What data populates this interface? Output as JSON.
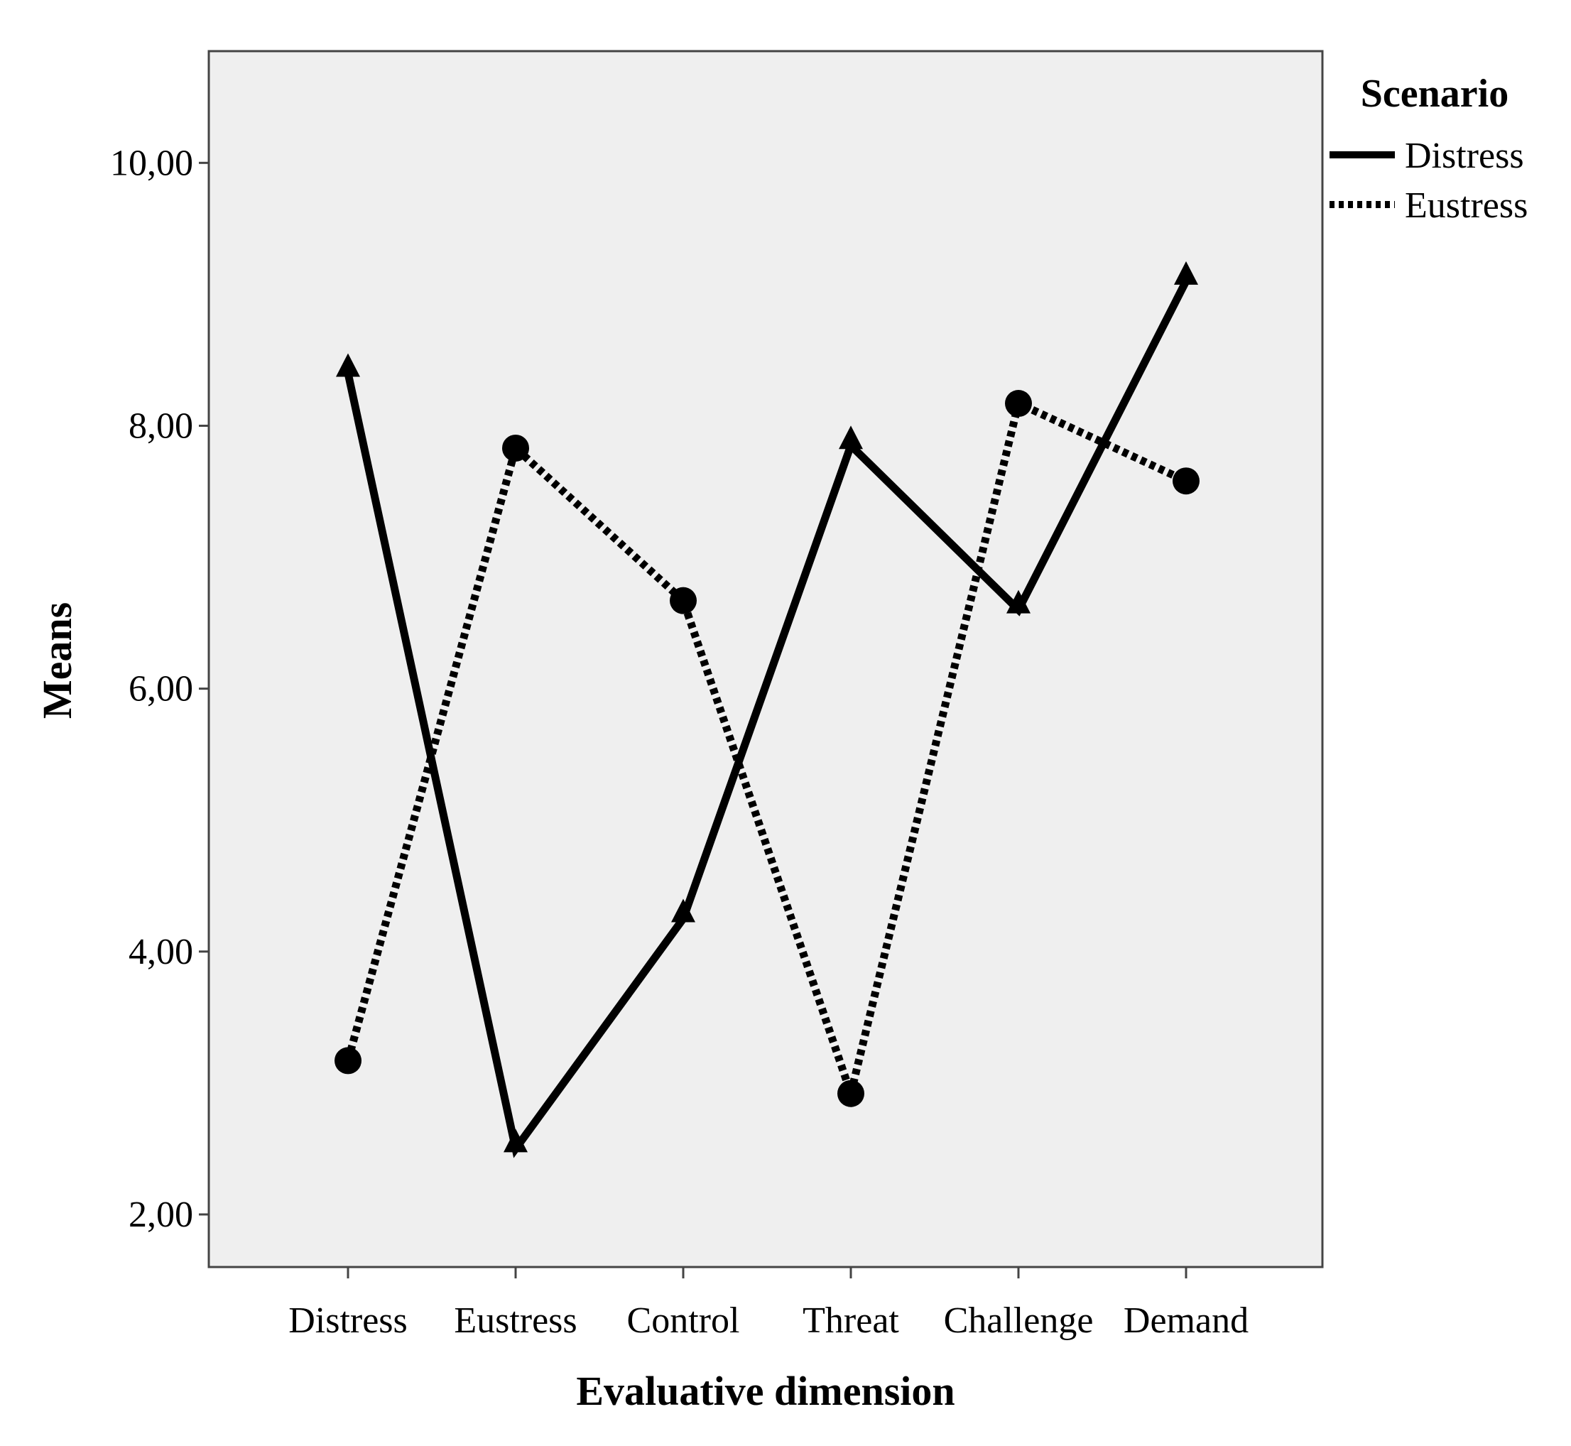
{
  "chart_data": {
    "type": "line",
    "xlabel": "Evaluative dimension",
    "ylabel": "Means",
    "categories": [
      "Distress",
      "Eustress",
      "Control",
      "Threat",
      "Challenge",
      "Demand"
    ],
    "ylim": [
      1.6,
      10.85
    ],
    "yticks": [
      2,
      4,
      6,
      8,
      10
    ],
    "ytick_labels": [
      "2,00",
      "4,00",
      "6,00",
      "8,00",
      "10,00"
    ],
    "grid": false,
    "legend": {
      "title": "Scenario",
      "placement": "top-right outside"
    },
    "series": [
      {
        "name": "Distress",
        "line_style": "solid",
        "marker": "triangle",
        "values": [
          8.4,
          2.5,
          4.25,
          7.85,
          6.6,
          9.1
        ]
      },
      {
        "name": "Eustress",
        "line_style": "dotted",
        "marker": "circle",
        "values": [
          3.17,
          7.83,
          6.67,
          2.92,
          8.17,
          7.58
        ]
      }
    ],
    "colors": {
      "plot_background": "#efefef",
      "axis": "#444444",
      "line": "#000000"
    }
  }
}
